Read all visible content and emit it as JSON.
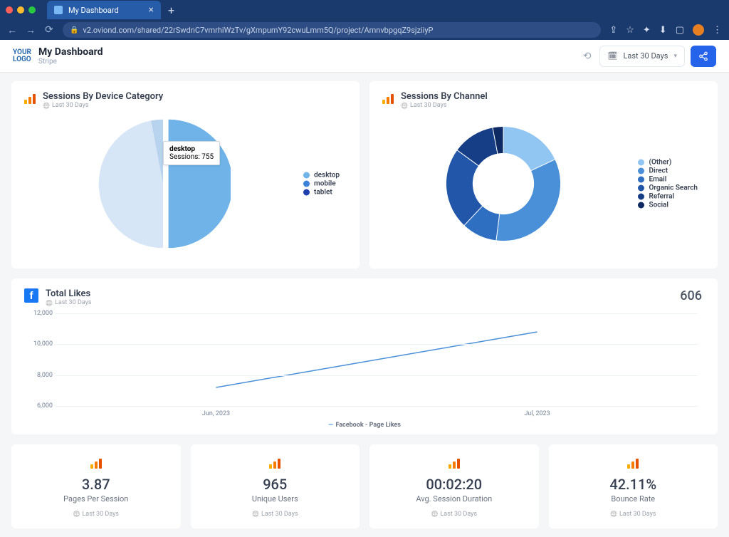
{
  "browser": {
    "tab_title": "My Dashboard",
    "url": "v2.oviond.com/shared/22rSwdnC7vmrhiWzTv/gXmpumY92cwuLmm5Q/project/AmnvbpgqZ9sjziiyP"
  },
  "header": {
    "logo_line1": "YOUR",
    "logo_line2": "LOGO",
    "title": "My Dashboard",
    "subtitle": "Stripe",
    "range_label": "Last 30 Days"
  },
  "pie_chart": {
    "title": "Sessions By Device Category",
    "subtitle": "Last 30 Days",
    "type": "pie",
    "radius": 95,
    "explode_offset": 8,
    "tooltip_title": "desktop",
    "tooltip_line": "Sessions: 755",
    "segments": [
      {
        "label": "desktop",
        "value": 50,
        "color": "#6fb3e8",
        "exploded": true
      },
      {
        "label": "mobile",
        "value": 47,
        "color": "#d6e6f7",
        "exploded": false
      },
      {
        "label": "tablet",
        "value": 3,
        "color": "#b7d3ee",
        "exploded": false
      }
    ],
    "legend_colors": {
      "desktop": "#6fb3e8",
      "mobile": "#3b82d6",
      "tablet": "#1e40af"
    },
    "title_fontsize": 13,
    "background_color": "#ffffff"
  },
  "donut_chart": {
    "title": "Sessions By Channel",
    "subtitle": "Last 30 Days",
    "type": "donut",
    "radius": 85,
    "inner_radius": 45,
    "segments": [
      {
        "label": "(Other)",
        "value": 18,
        "color": "#91c5f2"
      },
      {
        "label": "Direct",
        "value": 34,
        "color": "#4a90d9"
      },
      {
        "label": "Email",
        "value": 10,
        "color": "#2f6fc2"
      },
      {
        "label": "Organic Search",
        "value": 23,
        "color": "#2256a9"
      },
      {
        "label": "Referral",
        "value": 12,
        "color": "#163e86"
      },
      {
        "label": "Social",
        "value": 3,
        "color": "#0d2a63"
      }
    ],
    "title_fontsize": 13,
    "background_color": "#ffffff"
  },
  "line_chart": {
    "title": "Total Likes",
    "subtitle": "Last 30 Days",
    "big_value": "606",
    "type": "line",
    "ylim": [
      6000,
      12000
    ],
    "yticks": [
      6000,
      8000,
      10000,
      12000
    ],
    "ytick_labels": [
      "6,000",
      "8,000",
      "10,000",
      "12,000"
    ],
    "x_labels": [
      "Jun, 2023",
      "Jul, 2023"
    ],
    "x_label_positions": [
      0.25,
      0.75
    ],
    "series_label": "Facebook - Page Likes",
    "line_color": "#4a90d9",
    "line_width": 1.5,
    "points": [
      {
        "x": 0.25,
        "y": 7200
      },
      {
        "x": 0.75,
        "y": 10800
      }
    ],
    "grid_color": "#edf2f7",
    "background_color": "#ffffff"
  },
  "metrics": [
    {
      "value": "3.87",
      "label": "Pages Per Session",
      "sub": "Last 30 Days"
    },
    {
      "value": "965",
      "label": "Unique Users",
      "sub": "Last 30 Days"
    },
    {
      "value": "00:02:20",
      "label": "Avg. Session Duration",
      "sub": "Last 30 Days"
    },
    {
      "value": "42.11%",
      "label": "Bounce Rate",
      "sub": "Last 30 Days"
    }
  ]
}
